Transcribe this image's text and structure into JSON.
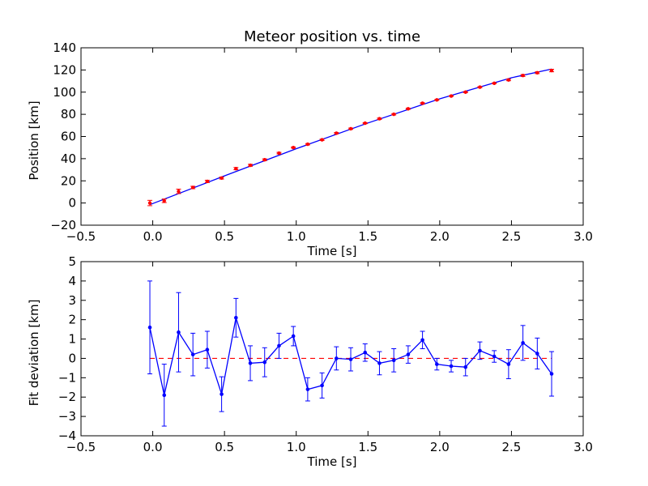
{
  "chart_data": [
    {
      "type": "scatter",
      "title": "Meteor position vs. time",
      "xlabel": "Time [s]",
      "ylabel": "Position [km]",
      "xlim": [
        -0.5,
        3.0
      ],
      "ylim": [
        -20,
        140
      ],
      "xticks": [
        "−0.5",
        "0.0",
        "0.5",
        "1.0",
        "1.5",
        "2.0",
        "2.5",
        "3.0"
      ],
      "yticks": [
        "−20",
        "0",
        "20",
        "40",
        "60",
        "80",
        "100",
        "120",
        "140"
      ],
      "grid": false,
      "legend": "none",
      "colors": {
        "points": "#ff0000",
        "errorbars": "#ff0000",
        "fit": "#0000ff"
      },
      "series": [
        {
          "kind": "points-with-errorbars",
          "x": [
            -0.02,
            0.08,
            0.18,
            0.28,
            0.38,
            0.48,
            0.58,
            0.68,
            0.78,
            0.88,
            0.98,
            1.08,
            1.18,
            1.28,
            1.38,
            1.48,
            1.58,
            1.68,
            1.78,
            1.88,
            1.98,
            2.08,
            2.18,
            2.28,
            2.38,
            2.48,
            2.58,
            2.68,
            2.78
          ],
          "y": [
            0.0,
            2.0,
            10.5,
            14.0,
            19.5,
            22.5,
            31.0,
            34.0,
            39.0,
            45.0,
            50.0,
            53.0,
            57.0,
            63.0,
            67.0,
            72.0,
            76.0,
            80.0,
            85.0,
            90.0,
            93.0,
            96.5,
            100.0,
            104.5,
            108.0,
            111.0,
            115.0,
            117.5,
            119.5
          ],
          "yerr": [
            2.4,
            1.6,
            2.0,
            1.1,
            1.0,
            0.9,
            1.0,
            0.9,
            0.8,
            0.7,
            0.5,
            0.6,
            0.6,
            0.6,
            0.6,
            0.45,
            0.6,
            0.6,
            0.5,
            0.45,
            0.4,
            0.3,
            0.45,
            0.45,
            0.3,
            0.7,
            0.85,
            0.8,
            1.15
          ]
        },
        {
          "kind": "fit-line",
          "x": [
            -0.02,
            0.5,
            1.0,
            1.5,
            2.0,
            2.5,
            2.78
          ],
          "y": [
            -1.5,
            24.5,
            49.0,
            72.2,
            94.0,
            113.0,
            120.8
          ]
        }
      ]
    },
    {
      "type": "line",
      "title": "",
      "xlabel": "Time [s]",
      "ylabel": "Fit deviation [km]",
      "xlim": [
        -0.5,
        3.0
      ],
      "ylim": [
        -4,
        5
      ],
      "xticks": [
        "−0.5",
        "0.0",
        "0.5",
        "1.0",
        "1.5",
        "2.0",
        "2.5",
        "3.0"
      ],
      "yticks": [
        "−4",
        "−3",
        "−2",
        "−1",
        "0",
        "1",
        "2",
        "3",
        "4",
        "5"
      ],
      "grid": false,
      "legend": "none",
      "colors": {
        "line": "#0000ff",
        "zero_line": "#ff0000"
      },
      "zero_line": 0,
      "series": [
        {
          "kind": "line-with-errorbars",
          "x": [
            -0.02,
            0.08,
            0.18,
            0.28,
            0.38,
            0.48,
            0.58,
            0.68,
            0.78,
            0.88,
            0.98,
            1.08,
            1.18,
            1.28,
            1.38,
            1.48,
            1.58,
            1.68,
            1.78,
            1.88,
            1.98,
            2.08,
            2.18,
            2.28,
            2.38,
            2.48,
            2.58,
            2.68,
            2.78
          ],
          "y": [
            1.6,
            -1.9,
            1.35,
            0.2,
            0.45,
            -1.85,
            2.1,
            -0.25,
            -0.2,
            0.65,
            1.15,
            -1.6,
            -1.4,
            0.0,
            -0.05,
            0.3,
            -0.25,
            -0.1,
            0.2,
            0.95,
            -0.3,
            -0.4,
            -0.45,
            0.4,
            0.1,
            -0.3,
            0.8,
            0.25,
            -0.8
          ],
          "yerr": [
            2.4,
            1.6,
            2.05,
            1.1,
            0.95,
            0.9,
            1.0,
            0.9,
            0.75,
            0.65,
            0.5,
            0.6,
            0.65,
            0.6,
            0.6,
            0.45,
            0.6,
            0.6,
            0.45,
            0.45,
            0.3,
            0.3,
            0.45,
            0.45,
            0.3,
            0.75,
            0.9,
            0.8,
            1.15
          ]
        }
      ]
    }
  ]
}
